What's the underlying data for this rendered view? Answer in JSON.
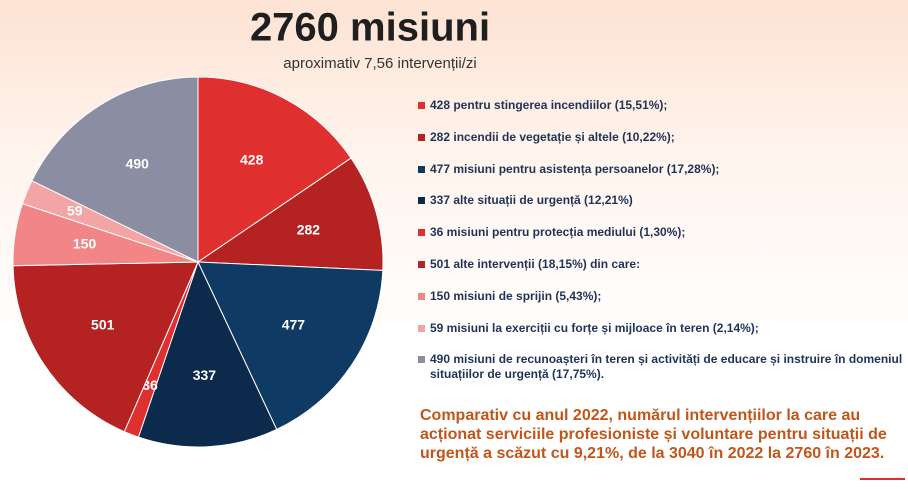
{
  "chart_data": {
    "type": "pie",
    "title": "2760 misiuni",
    "subtitle": "aproximativ 7,56  intervenții/zi",
    "categories": [
      "428 pentru stingerea incendiilor (15,51%);",
      "282 incendii  de vegetație și altele (10,22%);",
      "477 misiuni  pentru asistența persoanelor  (17,28%);",
      "337 alte situații  de urgență (12,21%)",
      "36 misiuni  pentru protecția mediului  (1,30%);",
      "501 alte intervenții (18,15%) din care:",
      "150 misiuni de sprijin (5,43%);",
      "59 misiuni  la exerciții cu forțe și mijloace  în teren (2,14%);",
      "490 misiuni  de recunoașteri în teren și activități de educare și instruire în domeniul  situațiilor de urgență (17,75%)."
    ],
    "values": [
      428,
      282,
      477,
      337,
      36,
      501,
      150,
      59,
      490
    ],
    "colors": [
      "#e02f2f",
      "#b42222",
      "#0f3a63",
      "#0c2a4b",
      "#e02f2f",
      "#b42222",
      "#f28686",
      "#f3a4a4",
      "#8b8ea3"
    ],
    "legend": "right",
    "note": "Comparativ cu anul 2022, numărul intervențiilor la care au acționat serviciile profesioniste și voluntare pentru situații de urgență a scăzut cu 9,21%, de la 3040 în 2022 la 2760 în 2023."
  }
}
